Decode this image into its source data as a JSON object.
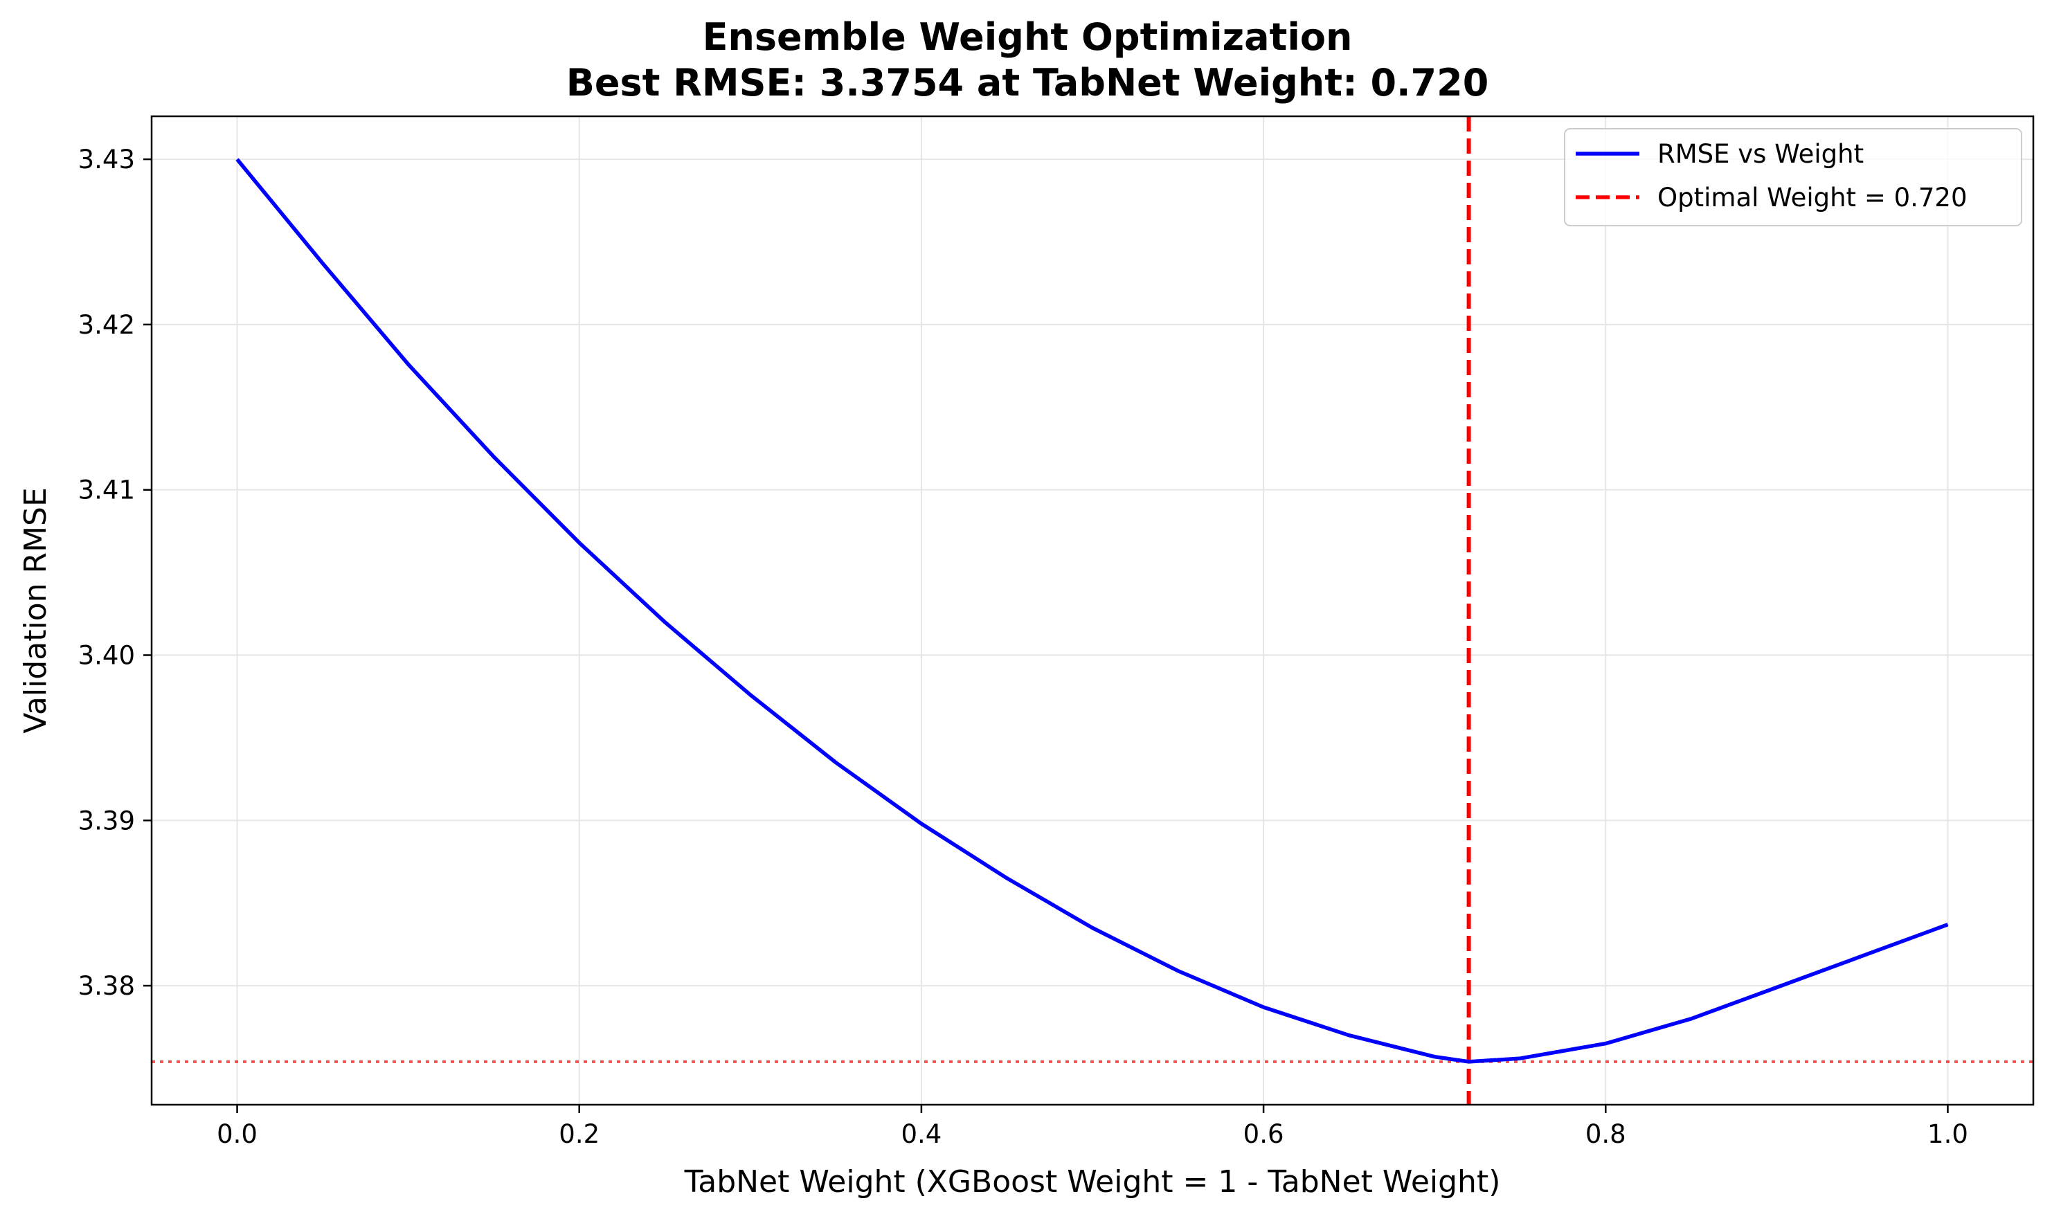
{
  "chart_data": {
    "type": "line",
    "title": "Ensemble Weight Optimization",
    "subtitle": "Best RMSE: 3.3754 at TabNet Weight: 0.720",
    "xlabel": "TabNet Weight (XGBoost Weight = 1 - TabNet Weight)",
    "ylabel": "Validation RMSE",
    "xlim": [
      -0.05,
      1.05
    ],
    "ylim": [
      3.3728,
      3.4326
    ],
    "x_ticks": [
      0.0,
      0.2,
      0.4,
      0.6,
      0.8,
      1.0
    ],
    "x_tick_labels": [
      "0.0",
      "0.2",
      "0.4",
      "0.6",
      "0.8",
      "1.0"
    ],
    "y_ticks": [
      3.38,
      3.39,
      3.4,
      3.41,
      3.42,
      3.43
    ],
    "y_tick_labels": [
      "3.38",
      "3.39",
      "3.40",
      "3.41",
      "3.42",
      "3.43"
    ],
    "grid": true,
    "legend_position": "top-right",
    "series": [
      {
        "name": "RMSE vs Weight",
        "color": "#0000ff",
        "style": "solid",
        "x": [
          0.0,
          0.05,
          0.1,
          0.15,
          0.2,
          0.25,
          0.3,
          0.35,
          0.4,
          0.45,
          0.5,
          0.55,
          0.6,
          0.65,
          0.7,
          0.72,
          0.75,
          0.8,
          0.85,
          0.9,
          0.95,
          1.0
        ],
        "y": [
          3.43,
          3.4237,
          3.4176,
          3.412,
          3.4068,
          3.402,
          3.3976,
          3.3935,
          3.3898,
          3.3865,
          3.3835,
          3.3809,
          3.3787,
          3.377,
          3.3757,
          3.3754,
          3.3756,
          3.3765,
          3.378,
          3.3799,
          3.3818,
          3.3837
        ]
      }
    ],
    "reference_lines": [
      {
        "name": "Optimal Weight = 0.720",
        "orientation": "vertical",
        "value": 0.72,
        "color": "#ff0000",
        "style": "dashed"
      },
      {
        "orientation": "horizontal",
        "value": 3.3754,
        "color": "#ff0000",
        "style": "dotted"
      }
    ]
  }
}
